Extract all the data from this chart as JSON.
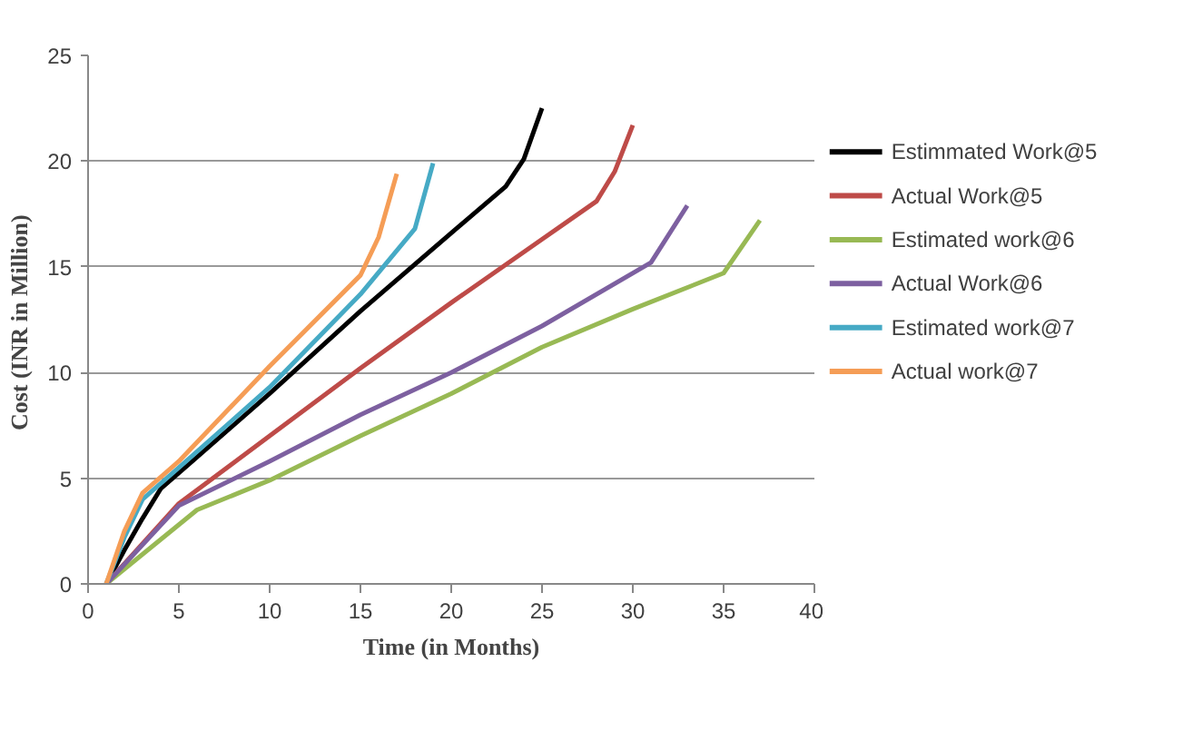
{
  "chart_data": {
    "type": "line",
    "xlabel": "Time (in Months)",
    "ylabel": "Cost  (INR in Million)",
    "xlim": [
      0,
      40
    ],
    "xticks": [
      0,
      5,
      10,
      15,
      20,
      25,
      30,
      35,
      40
    ],
    "ylim": [
      0,
      25
    ],
    "yticks": [
      0,
      5,
      10,
      15,
      20,
      25
    ],
    "grid": "y",
    "legend": "right",
    "series": [
      {
        "name": "Estimmated Work@5",
        "color": "#000000",
        "x": [
          1,
          2,
          3,
          4,
          10,
          15,
          20,
          23,
          24,
          25
        ],
        "values": [
          0,
          1.6,
          3.1,
          4.5,
          9,
          12.9,
          16.6,
          18.8,
          20.1,
          22.5
        ]
      },
      {
        "name": "Actual Work@5",
        "color": "#be4b48",
        "x": [
          1,
          5,
          10,
          15,
          20,
          25,
          28,
          29,
          30
        ],
        "values": [
          0,
          3.8,
          7,
          10.2,
          13.3,
          16.3,
          18.1,
          19.5,
          21.7
        ]
      },
      {
        "name": "Estimated work@6",
        "color": "#98b954",
        "x": [
          1,
          6,
          10,
          15,
          20,
          25,
          30,
          35,
          37
        ],
        "values": [
          0,
          3.5,
          4.9,
          7,
          9,
          11.2,
          13,
          14.7,
          17.2
        ]
      },
      {
        "name": "Actual Work@6",
        "color": "#7d60a0",
        "x": [
          1,
          5,
          10,
          15,
          20,
          25,
          31,
          33
        ],
        "values": [
          0,
          3.7,
          5.8,
          8,
          10,
          12.2,
          15.2,
          17.9
        ]
      },
      {
        "name": "Estimated work@7",
        "color": "#46aac5",
        "x": [
          1,
          2,
          3,
          5,
          10,
          15,
          18,
          19
        ],
        "values": [
          0,
          2.2,
          4,
          5.5,
          9.3,
          13.7,
          16.8,
          19.9
        ]
      },
      {
        "name": "Actual work@7",
        "color": "#f59d56",
        "x": [
          1,
          2,
          3,
          5,
          10,
          15,
          16,
          17
        ],
        "values": [
          0,
          2.5,
          4.3,
          5.8,
          10.3,
          14.6,
          16.4,
          19.4
        ]
      }
    ]
  }
}
